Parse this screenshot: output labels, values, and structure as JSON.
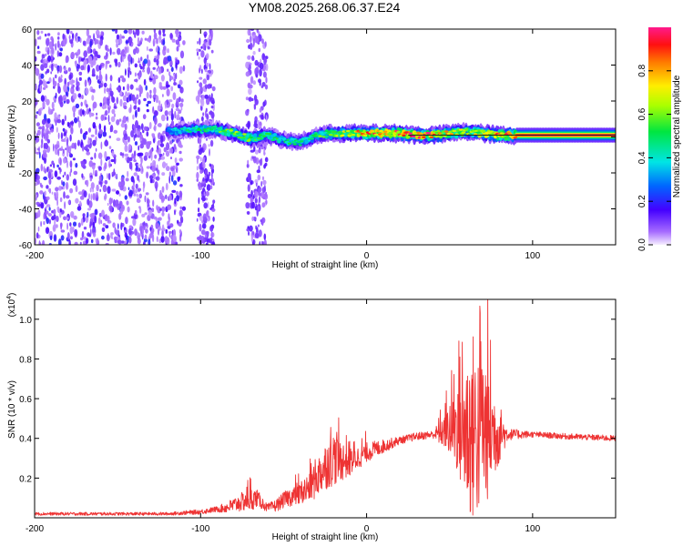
{
  "title": "YM08.2025.268.06.37.E24",
  "chart_data": [
    {
      "type": "heatmap",
      "name": "spectrogram",
      "xlabel": "Height of straight line (km)",
      "ylabel": "Frequency (Hz)",
      "xlim": [
        -200,
        150
      ],
      "ylim": [
        -60,
        60
      ],
      "xticks": [
        -200,
        -100,
        0,
        100
      ],
      "xtick_labels": [
        "-200",
        "-100",
        "0",
        "100"
      ],
      "yticks": [
        -60,
        -40,
        -20,
        0,
        20,
        40,
        60
      ],
      "ytick_labels": [
        "-60",
        "-40",
        "-20",
        "0",
        "20",
        "40",
        "60"
      ],
      "colorbar": {
        "label": "Normalized spectral amplitude",
        "range": [
          0,
          1
        ],
        "ticks": [
          0.0,
          0.2,
          0.4,
          0.6,
          0.8
        ],
        "tick_labels": [
          "0.0",
          "0.2",
          "0.4",
          "0.6",
          "0.8"
        ]
      },
      "noise_region_x": [
        -200,
        -110
      ],
      "noise_stripes_x": [
        [
          -102,
          -92
        ],
        [
          -72,
          -60
        ]
      ],
      "signal_track": {
        "x": [
          -120,
          -110,
          -100,
          -90,
          -80,
          -70,
          -60,
          -50,
          -40,
          -30,
          -20,
          -10,
          0,
          10,
          20,
          30,
          40,
          50,
          60,
          70,
          80,
          90,
          100,
          110,
          120,
          130,
          140,
          150
        ],
        "freq": [
          3,
          4,
          4,
          4,
          2,
          -1,
          1,
          -2,
          -3,
          1,
          2,
          2,
          2,
          2,
          2,
          1,
          1,
          2,
          3,
          2,
          1,
          1,
          1,
          1,
          1,
          1,
          1,
          1
        ],
        "amp": [
          0.3,
          0.4,
          0.45,
          0.5,
          0.6,
          0.55,
          0.5,
          0.45,
          0.45,
          0.5,
          0.6,
          0.7,
          0.8,
          0.85,
          0.85,
          0.9,
          0.85,
          0.7,
          0.65,
          0.75,
          0.85,
          0.9,
          0.95,
          0.95,
          0.95,
          0.95,
          0.95,
          0.95
        ]
      }
    },
    {
      "type": "line",
      "name": "snr",
      "xlabel": "Height of straight line (km)",
      "ylabel": "SNR (10 * v/v)",
      "scale_label": "(x10",
      "scale_exp": "4",
      "scale_close": ")",
      "color": "#ee3333",
      "xlim": [
        -200,
        150
      ],
      "ylim": [
        0,
        1.1
      ],
      "xticks": [
        -200,
        -100,
        0,
        100
      ],
      "xtick_labels": [
        "-200",
        "-100",
        "0",
        "100"
      ],
      "yticks": [
        0.2,
        0.4,
        0.6,
        0.8,
        1.0
      ],
      "ytick_labels": [
        "0.2",
        "0.4",
        "0.6",
        "0.8",
        "1.0"
      ],
      "envelope": {
        "x": [
          -200,
          -160,
          -120,
          -100,
          -85,
          -78,
          -72,
          -66,
          -60,
          -55,
          -48,
          -40,
          -35,
          -30,
          -25,
          -20,
          -15,
          -10,
          0,
          10,
          20,
          30,
          40,
          45,
          50,
          55,
          60,
          65,
          70,
          75,
          80,
          85,
          90,
          100,
          120,
          150
        ],
        "y": [
          0.02,
          0.02,
          0.02,
          0.03,
          0.05,
          0.07,
          0.09,
          0.1,
          0.05,
          0.06,
          0.1,
          0.12,
          0.15,
          0.2,
          0.26,
          0.3,
          0.29,
          0.28,
          0.33,
          0.36,
          0.39,
          0.41,
          0.42,
          0.43,
          0.45,
          0.46,
          0.44,
          0.42,
          0.45,
          0.44,
          0.42,
          0.42,
          0.42,
          0.42,
          0.41,
          0.4
        ]
      },
      "noise": {
        "x": [
          -200,
          -120,
          -90,
          -70,
          -60,
          -40,
          -30,
          -20,
          -10,
          0,
          20,
          40,
          48,
          55,
          62,
          70,
          78,
          85,
          100,
          150
        ],
        "amp": [
          0.008,
          0.008,
          0.015,
          0.06,
          0.02,
          0.06,
          0.1,
          0.14,
          0.07,
          0.05,
          0.02,
          0.02,
          0.1,
          0.25,
          0.45,
          0.45,
          0.2,
          0.03,
          0.015,
          0.015
        ]
      }
    }
  ]
}
